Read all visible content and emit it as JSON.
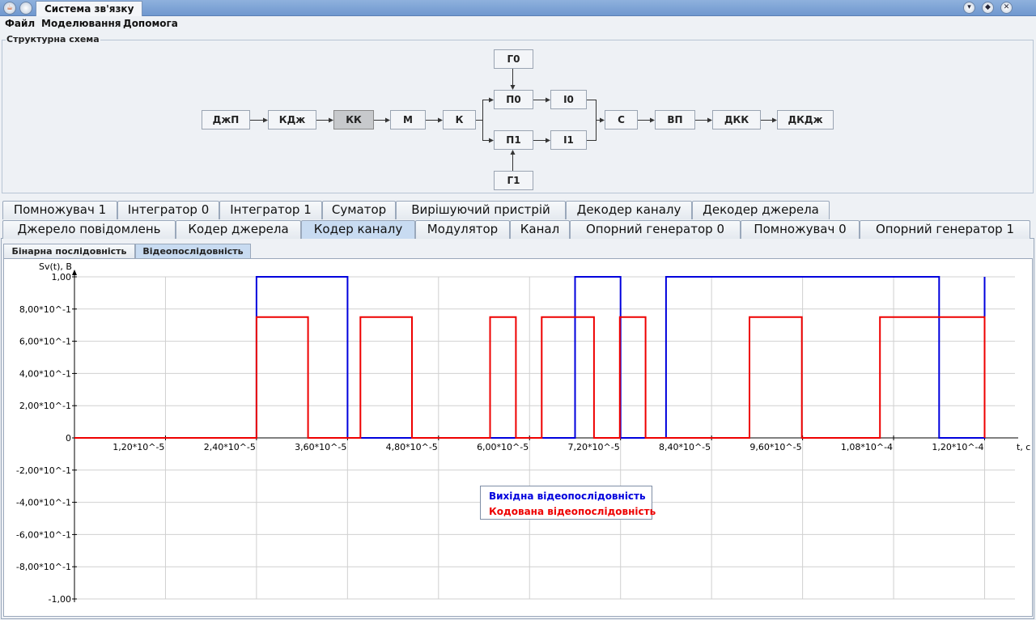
{
  "window": {
    "title": "Система зв'язку",
    "app_icon": "java-coffee-icon"
  },
  "menu": [
    "Файл",
    "Моделювання",
    "Допомога"
  ],
  "scheme": {
    "title": "Структурна схема",
    "blocks": {
      "djp": "ДжП",
      "kdj": "КДж",
      "kk": "КК",
      "m": "М",
      "k": "К",
      "g0": "Г0",
      "p0": "П0",
      "i0": "І0",
      "p1": "П1",
      "i1": "І1",
      "g1": "Г1",
      "s": "С",
      "vp": "ВП",
      "dkk": "ДКК",
      "dkdj": "ДКДж"
    },
    "active_block": "kk"
  },
  "tabs_row1": [
    "Помножувач 1",
    "Інтегратор 0",
    "Інтегратор 1",
    "Суматор",
    "Вирішуючий пристрій",
    "Декодер каналу",
    "Декодер джерела"
  ],
  "tabs_row2": [
    "Джерело повідомлень",
    "Кодер джерела",
    "Кодер каналу",
    "Модулятор",
    "Канал",
    "Опорний генератор 0",
    "Помножувач 0",
    "Опорний генератор 1"
  ],
  "selected_tab": "Кодер каналу",
  "subtabs": [
    "Бінарна послідовність",
    "Відеопослідовність"
  ],
  "selected_subtab": "Відеопослідовність",
  "chart_data": {
    "type": "line",
    "ylabel": "Sv(t), B",
    "xlabel": "t, c",
    "xlim": [
      0,
      0.000124
    ],
    "ylim": [
      -1,
      1
    ],
    "x_ticks": [
      {
        "v": 1.2e-05,
        "label": "1,20*10^-5"
      },
      {
        "v": 2.4e-05,
        "label": "2,40*10^-5"
      },
      {
        "v": 3.6e-05,
        "label": "3,60*10^-5"
      },
      {
        "v": 4.8e-05,
        "label": "4,80*10^-5"
      },
      {
        "v": 6e-05,
        "label": "6,00*10^-5"
      },
      {
        "v": 7.2e-05,
        "label": "7,20*10^-5"
      },
      {
        "v": 8.4e-05,
        "label": "8,40*10^-5"
      },
      {
        "v": 9.6e-05,
        "label": "9,60*10^-5"
      },
      {
        "v": 0.000108,
        "label": "1,08*10^-4"
      },
      {
        "v": 0.00012,
        "label": "1,20*10^-4"
      }
    ],
    "y_ticks": [
      {
        "v": 1,
        "label": "1,00"
      },
      {
        "v": 0.8,
        "label": "8,00*10^-1"
      },
      {
        "v": 0.6,
        "label": "6,00*10^-1"
      },
      {
        "v": 0.4,
        "label": "4,00*10^-1"
      },
      {
        "v": 0.2,
        "label": "2,00*10^-1"
      },
      {
        "v": 0,
        "label": "0"
      },
      {
        "v": -0.2,
        "label": "-2,00*10^-1"
      },
      {
        "v": -0.4,
        "label": "-4,00*10^-1"
      },
      {
        "v": -0.6,
        "label": "-6,00*10^-1"
      },
      {
        "v": -0.8,
        "label": "-8,00*10^-1"
      },
      {
        "v": -1,
        "label": "-1,00"
      }
    ],
    "grid": true,
    "legend_position": "center",
    "series": [
      {
        "name": "Вихідна відеопослідовність",
        "color": "#0000dd",
        "x": [
          0,
          2.4e-05,
          2.4e-05,
          3.6e-05,
          3.6e-05,
          6e-05,
          6e-05,
          6.6e-05,
          6.6e-05,
          7.2e-05,
          7.2e-05,
          7.8e-05,
          7.8e-05,
          0.000114,
          0.000114,
          0.00012,
          0.00012
        ],
        "y": [
          0,
          0,
          1,
          1,
          0,
          0,
          0,
          0,
          1,
          1,
          0,
          0,
          1,
          1,
          0,
          0,
          1
        ]
      },
      {
        "name": "Кодована відеопослідовність",
        "color": "#ee0000",
        "x": [
          0,
          2.4e-05,
          2.4e-05,
          3.08e-05,
          3.08e-05,
          3.77e-05,
          3.77e-05,
          4.45e-05,
          4.45e-05,
          5.48e-05,
          5.48e-05,
          5.82e-05,
          5.82e-05,
          6.16e-05,
          6.16e-05,
          6.85e-05,
          6.85e-05,
          7.19e-05,
          7.19e-05,
          7.53e-05,
          7.53e-05,
          8.9e-05,
          8.9e-05,
          9.59e-05,
          9.59e-05,
          0.0001062,
          0.0001062,
          0.00012,
          0.00012
        ],
        "y": [
          0,
          0,
          0.75,
          0.75,
          0,
          0,
          0.75,
          0.75,
          0,
          0,
          0.75,
          0.75,
          0,
          0,
          0.75,
          0.75,
          0,
          0,
          0.75,
          0.75,
          0,
          0,
          0.75,
          0.75,
          0,
          0,
          0.75,
          0.75,
          0
        ]
      }
    ]
  }
}
